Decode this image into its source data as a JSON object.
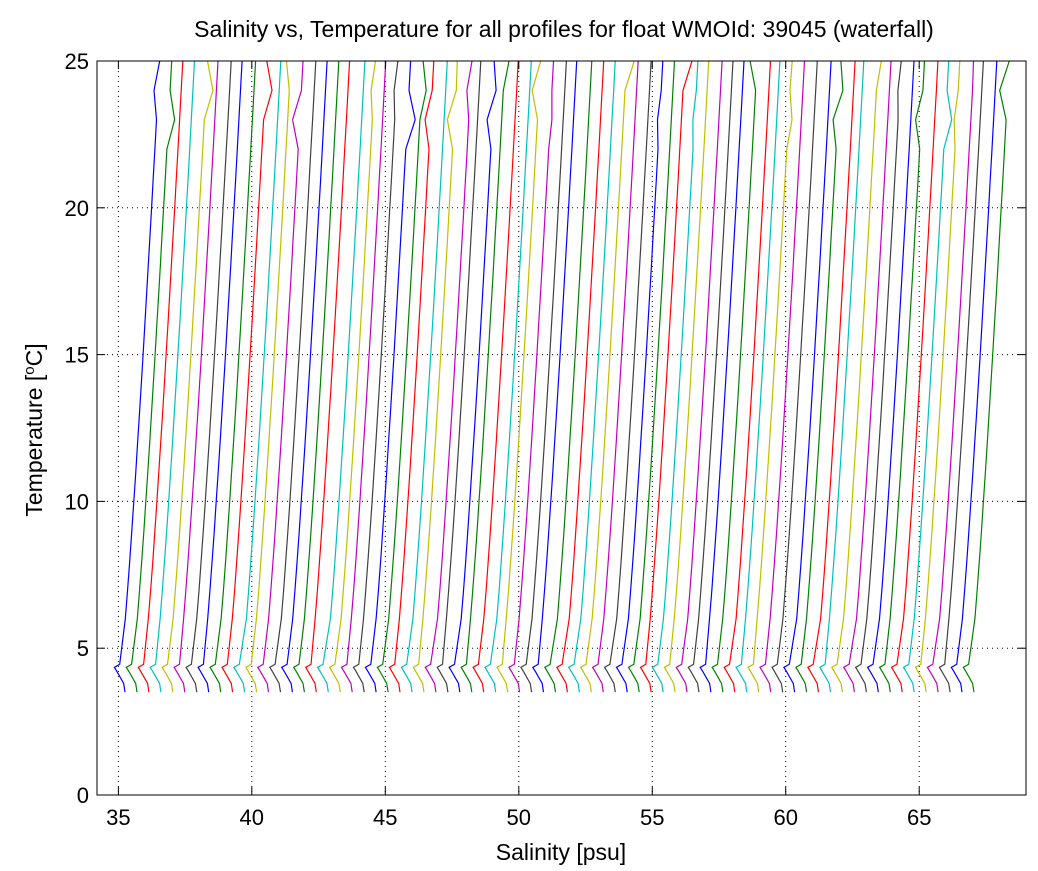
{
  "chart_data": {
    "type": "line",
    "title": "Salinity vs, Temperature for all profiles for float WMOId: 39045 (waterfall)",
    "xlabel": "Salinity [psu]",
    "ylabel_main": "Temperature [",
    "ylabel_sup": "o",
    "ylabel_end": "C]",
    "xlim": [
      34.2,
      69
    ],
    "ylim": [
      0,
      25
    ],
    "x_ticks": [
      35,
      40,
      45,
      50,
      55,
      60,
      65
    ],
    "y_ticks": [
      0,
      5,
      10,
      15,
      20,
      25
    ],
    "grid": true,
    "legend": "none",
    "colors": [
      "#0000ff",
      "#008000",
      "#ff0000",
      "#00bfbf",
      "#bfbf00",
      "#bf00bf",
      "#404040"
    ],
    "waterfall": {
      "profile_count": 72,
      "bottom_start_salinity": 34.9,
      "spacing_psu": 0.4479,
      "top_offset_psu": 1.4,
      "mixed_layer_temperature": 4.2,
      "min_temperature": 3.5,
      "max_temperature": 25
    }
  }
}
